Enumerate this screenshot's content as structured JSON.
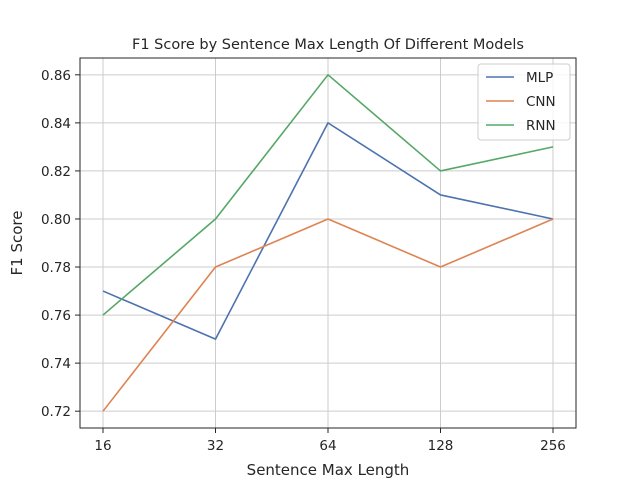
{
  "chart_data": {
    "type": "line",
    "title": "F1 Score by Sentence Max Length Of Different Models",
    "xlabel": "Sentence Max Length",
    "ylabel": "F1 Score",
    "categories": [
      "16",
      "32",
      "64",
      "128",
      "256"
    ],
    "series": [
      {
        "name": "MLP",
        "color": "#4c72b0",
        "values": [
          0.77,
          0.75,
          0.84,
          0.81,
          0.8
        ]
      },
      {
        "name": "CNN",
        "color": "#dd8452",
        "values": [
          0.72,
          0.78,
          0.8,
          0.78,
          0.8
        ]
      },
      {
        "name": "RNN",
        "color": "#55a868",
        "values": [
          0.76,
          0.8,
          0.86,
          0.82,
          0.83
        ]
      }
    ],
    "ylim": [
      0.713,
      0.867
    ],
    "yticks": [
      "0.72",
      "0.74",
      "0.76",
      "0.78",
      "0.80",
      "0.82",
      "0.84",
      "0.86"
    ],
    "grid": true,
    "legend_position": "top-right"
  }
}
